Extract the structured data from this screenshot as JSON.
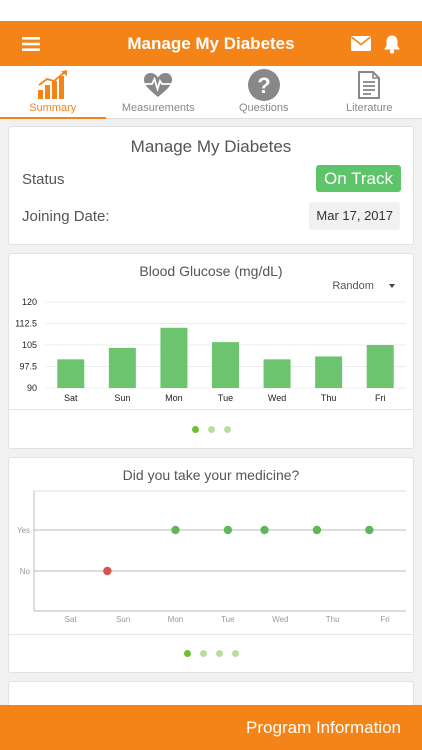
{
  "colors": {
    "brand": "#f48418",
    "on_track": "#5ec46a",
    "bar": "#6cc46e",
    "yes_point": "#5cb85c",
    "no_point": "#d9534f"
  },
  "header": {
    "title": "Manage My Diabetes",
    "menu_icon": "hamburger-icon",
    "icons": [
      "envelope-icon",
      "bell-icon"
    ]
  },
  "tabs": [
    {
      "label": "Summary",
      "icon": "bar-chart-icon",
      "active": true
    },
    {
      "label": "Measurements",
      "icon": "heart-pulse-icon",
      "active": false
    },
    {
      "label": "Questions",
      "icon": "question-icon",
      "active": false
    },
    {
      "label": "Literature",
      "icon": "document-icon",
      "active": false
    }
  ],
  "summary": {
    "title": "Manage My Diabetes",
    "status_label": "Status",
    "status_value": "On Track",
    "joining_label": "Joining Date:",
    "joining_value": "Mar 17, 2017"
  },
  "glucose": {
    "title": "Blood Glucose (mg/dL)",
    "filter": "Random",
    "pages": 3,
    "active_page": 0
  },
  "medicine": {
    "title": "Did you take your medicine?",
    "pages": 4,
    "active_page": 0
  },
  "chart_data": [
    {
      "type": "bar",
      "title": "Blood Glucose (mg/dL)",
      "categories": [
        "Sat",
        "Sun",
        "Mon",
        "Tue",
        "Wed",
        "Thu",
        "Fri"
      ],
      "values": [
        100,
        104,
        111,
        106,
        100,
        101,
        105
      ],
      "ylim": [
        90,
        120
      ],
      "yticks": [
        "120",
        "112.5",
        "105",
        "97.5",
        "90"
      ],
      "grid": true
    },
    {
      "type": "scatter",
      "title": "Did you take your medicine?",
      "x_ticks": [
        "Sat",
        "Sun",
        "Mon",
        "Tue",
        "Wed",
        "Thu",
        "Fri"
      ],
      "y_ticks": [
        "Yes",
        "No"
      ],
      "points": [
        {
          "x": 1.7,
          "y": "No"
        },
        {
          "x": 3.0,
          "y": "Yes"
        },
        {
          "x": 4.0,
          "y": "Yes"
        },
        {
          "x": 4.7,
          "y": "Yes"
        },
        {
          "x": 5.7,
          "y": "Yes"
        },
        {
          "x": 6.7,
          "y": "Yes"
        }
      ],
      "xlim": [
        0.3,
        7.4
      ]
    }
  ],
  "footer": {
    "label": "Program Information"
  }
}
